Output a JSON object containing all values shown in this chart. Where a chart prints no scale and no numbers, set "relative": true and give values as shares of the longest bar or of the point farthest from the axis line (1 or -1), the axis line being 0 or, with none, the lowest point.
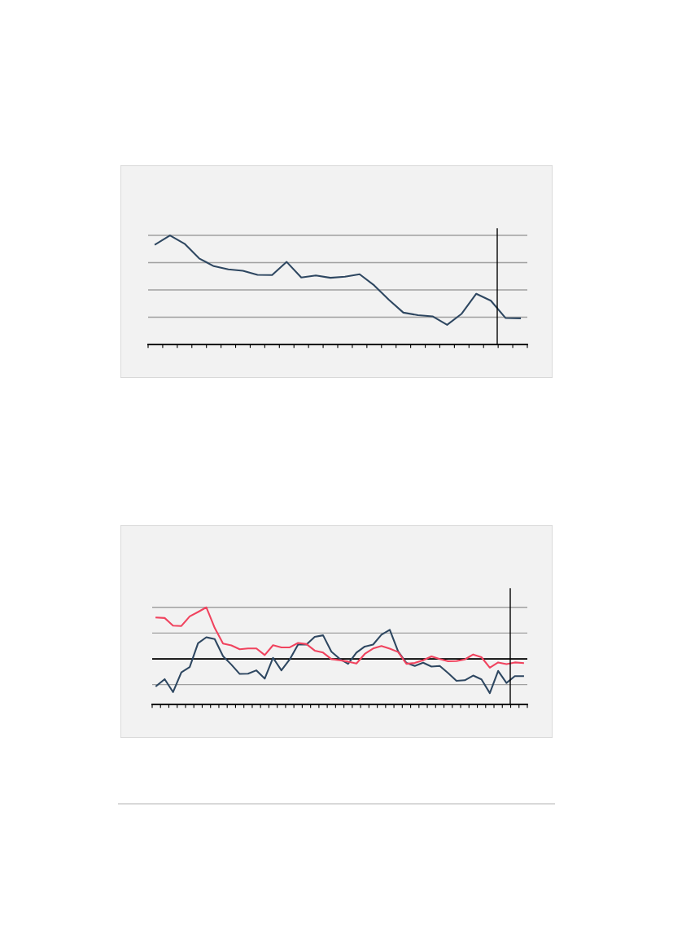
{
  "chart_data": [
    {
      "type": "line",
      "relative": true,
      "grid": "y",
      "categories": [
        null,
        null,
        null,
        null,
        null,
        null,
        null,
        null,
        null,
        null,
        null,
        null,
        null,
        null,
        null,
        null,
        null,
        null,
        null,
        null,
        null,
        null,
        null,
        null,
        null,
        null
      ],
      "series": [
        {
          "color": "#2e4761",
          "values": [
            0.918,
            1,
            0.923,
            0.789,
            0.718,
            0.688,
            0.676,
            0.638,
            0.636,
            0.757,
            0.614,
            0.633,
            0.611,
            0.621,
            0.644,
            0.542,
            0.411,
            0.292,
            0.269,
            0.258,
            0.18,
            0.282,
            0.465,
            0.401,
            0.243,
            0.24
          ]
        }
      ]
    },
    {
      "type": "line",
      "relative": true,
      "grid": "y",
      "categories": [
        null,
        null,
        null,
        null,
        null,
        null,
        null,
        null,
        null,
        null,
        null,
        null,
        null,
        null,
        null,
        null,
        null,
        null,
        null,
        null,
        null,
        null,
        null,
        null,
        null,
        null,
        null,
        null,
        null,
        null,
        null,
        null,
        null,
        null,
        null,
        null,
        null,
        null,
        null,
        null,
        null,
        null,
        null,
        null,
        null
      ],
      "series": [
        {
          "color": "#2e4761",
          "values": [
            -0.527,
            -0.394,
            -0.644,
            -0.261,
            -0.16,
            0.303,
            0.42,
            0.383,
            0.053,
            -0.112,
            -0.293,
            -0.287,
            -0.223,
            -0.383,
            0.021,
            -0.223,
            -0.011,
            0.277,
            0.277,
            0.426,
            0.457,
            0.138,
            0,
            -0.096,
            0.122,
            0.239,
            0.277,
            0.468,
            0.564,
            0.144,
            -0.08,
            -0.138,
            -0.074,
            -0.149,
            -0.138,
            -0.277,
            -0.426,
            -0.415,
            -0.324,
            -0.399,
            -0.665,
            -0.234,
            -0.468,
            -0.335,
            -0.335
          ]
        },
        {
          "color": "#f0435e",
          "values": [
            0.803,
            0.793,
            0.644,
            0.638,
            0.824,
            0.91,
            1,
            0.601,
            0.298,
            0.261,
            0.186,
            0.202,
            0.202,
            0.074,
            0.266,
            0.223,
            0.223,
            0.309,
            0.287,
            0.16,
            0.122,
            -0.005,
            -0.027,
            -0.053,
            -0.09,
            0.096,
            0.202,
            0.25,
            0.197,
            0.133,
            -0.096,
            -0.08,
            -0.027,
            0.048,
            -0.005,
            -0.048,
            -0.043,
            -0.011,
            0.085,
            0.032,
            -0.17,
            -0.069,
            -0.101,
            -0.069,
            -0.08
          ]
        }
      ]
    }
  ]
}
